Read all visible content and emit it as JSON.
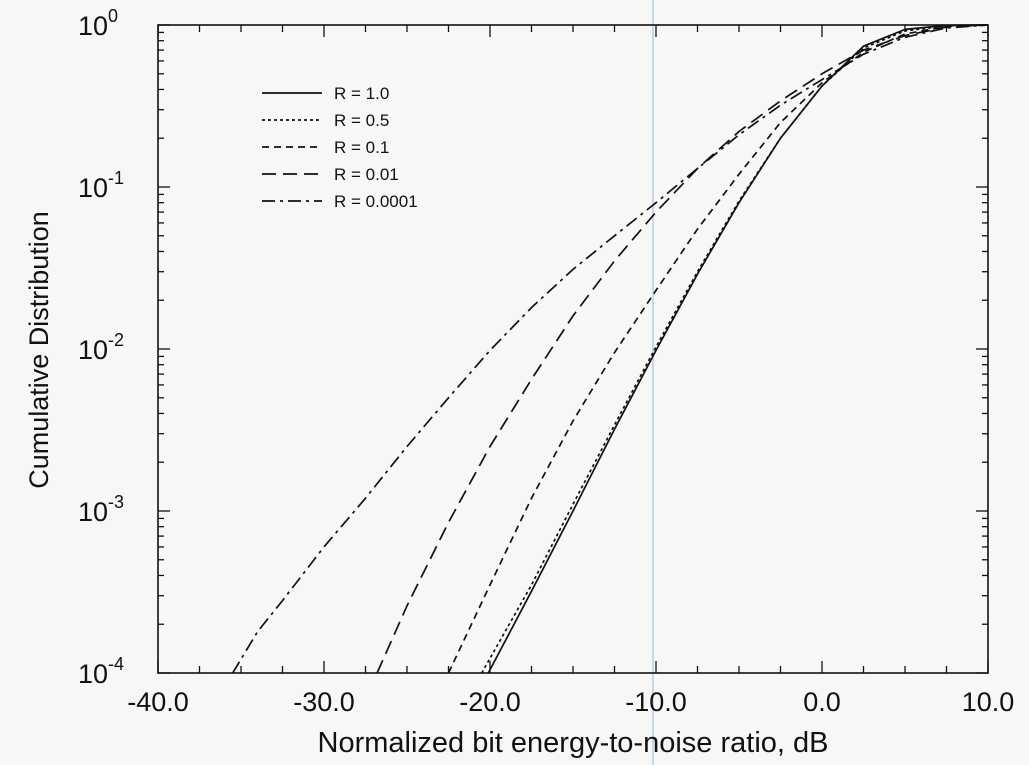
{
  "chart_data": {
    "type": "line",
    "title": "",
    "xlabel": "Normalized bit energy-to-noise ratio, dB",
    "ylabel": "Cumulative Distribution",
    "x_scale": "linear",
    "y_scale": "log",
    "xlim": [
      -40,
      10
    ],
    "ylim": [
      0.0001,
      1
    ],
    "x_ticks": [
      -40,
      -30,
      -20,
      -10,
      0,
      10
    ],
    "x_tick_labels": [
      "-40.0",
      "-30.0",
      "-20.0",
      "-10.0",
      "0.0",
      "10.0"
    ],
    "y_ticks": [
      0.0001,
      0.001,
      0.01,
      0.1,
      1
    ],
    "y_tick_labels": [
      {
        "base": "10",
        "exp": "-4"
      },
      {
        "base": "10",
        "exp": "-3"
      },
      {
        "base": "10",
        "exp": "-2"
      },
      {
        "base": "10",
        "exp": "-1"
      },
      {
        "base": "10",
        "exp": "0"
      }
    ],
    "grid": false,
    "legend_position": "top-left",
    "series": [
      {
        "name": "R = 1.0",
        "style": "solid",
        "x": [
          -20.1,
          -17.5,
          -15,
          -12.5,
          -10,
          -7.5,
          -5,
          -2.5,
          0,
          2.5,
          5,
          7.5,
          10
        ],
        "y": [
          0.0001,
          0.00032,
          0.001,
          0.0032,
          0.0098,
          0.029,
          0.08,
          0.2,
          0.42,
          0.74,
          0.94,
          0.995,
          1.0
        ]
      },
      {
        "name": "R = 0.5",
        "style": "dotted",
        "x": [
          -20.5,
          -17.5,
          -15,
          -12.5,
          -10,
          -7.5,
          -5,
          -2.5,
          0,
          2.5,
          5,
          7.5,
          10
        ],
        "y": [
          0.0001,
          0.00035,
          0.0011,
          0.0034,
          0.0103,
          0.03,
          0.082,
          0.2,
          0.42,
          0.72,
          0.92,
          0.99,
          1.0
        ]
      },
      {
        "name": "R = 0.1",
        "style": "dashed",
        "x": [
          -22.5,
          -20,
          -17.5,
          -15,
          -12.5,
          -10,
          -7.5,
          -5,
          -2.5,
          0,
          2.5,
          5,
          7.5,
          10
        ],
        "y": [
          0.0001,
          0.00035,
          0.0012,
          0.0036,
          0.0095,
          0.023,
          0.055,
          0.12,
          0.25,
          0.44,
          0.68,
          0.88,
          0.98,
          1.0
        ]
      },
      {
        "name": "R = 0.01",
        "style": "long-dash",
        "x": [
          -26.8,
          -25,
          -22.5,
          -20,
          -17.5,
          -15,
          -12.5,
          -10,
          -7.5,
          -5,
          -2.5,
          0,
          2.5,
          5,
          7.5,
          10
        ],
        "y": [
          0.0001,
          0.00026,
          0.00085,
          0.0025,
          0.0065,
          0.016,
          0.035,
          0.07,
          0.13,
          0.22,
          0.34,
          0.5,
          0.7,
          0.86,
          0.97,
          1.0
        ]
      },
      {
        "name": "R = 0.0001",
        "style": "dash-dot",
        "x": [
          -35.5,
          -34,
          -32.5,
          -30,
          -27.5,
          -25,
          -22.5,
          -20,
          -17.5,
          -15,
          -12.5,
          -10,
          -7.5,
          -5,
          -2.5,
          0,
          2.5,
          5,
          7.5,
          10
        ],
        "y": [
          0.0001,
          0.00018,
          0.00028,
          0.0006,
          0.0012,
          0.0025,
          0.005,
          0.0098,
          0.018,
          0.031,
          0.05,
          0.08,
          0.13,
          0.21,
          0.32,
          0.46,
          0.66,
          0.84,
          0.96,
          1.0
        ]
      }
    ]
  }
}
